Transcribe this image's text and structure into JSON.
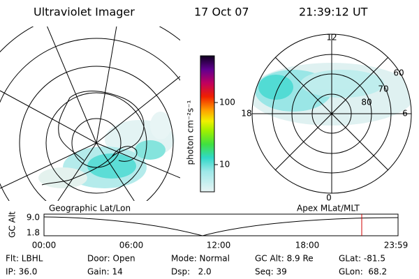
{
  "header": {
    "title": "Ultraviolet Imager",
    "date": "17 Oct 07",
    "time": "21:39:12 UT"
  },
  "colorbar": {
    "label": "photon cm⁻²s⁻¹",
    "ticks": [
      "100",
      "10"
    ]
  },
  "polar_plot": {
    "labels": [
      "12",
      "60",
      "70",
      "80",
      "18",
      "6",
      "0"
    ]
  },
  "map_labels": {
    "left": "Geographic Lat/Lon",
    "right": "Apex MLat/MLT"
  },
  "timeline": {
    "axis_label": "GC Alt",
    "y_labels": [
      "9.0",
      "1.8"
    ],
    "x_labels": [
      "00:00",
      "06:00",
      "12:00",
      "18:00",
      "23:59"
    ]
  },
  "footer": {
    "rows": [
      [
        "Flt: LBHL",
        "Door: Open",
        "Mode: Normal",
        "GC Alt: 8.9 Re",
        "GLat: -81.5"
      ],
      [
        "IP: 36.0",
        "Gain: 14",
        "Dsp:   2.0",
        "Seq: 39",
        "GLon:  68.2"
      ]
    ]
  }
}
